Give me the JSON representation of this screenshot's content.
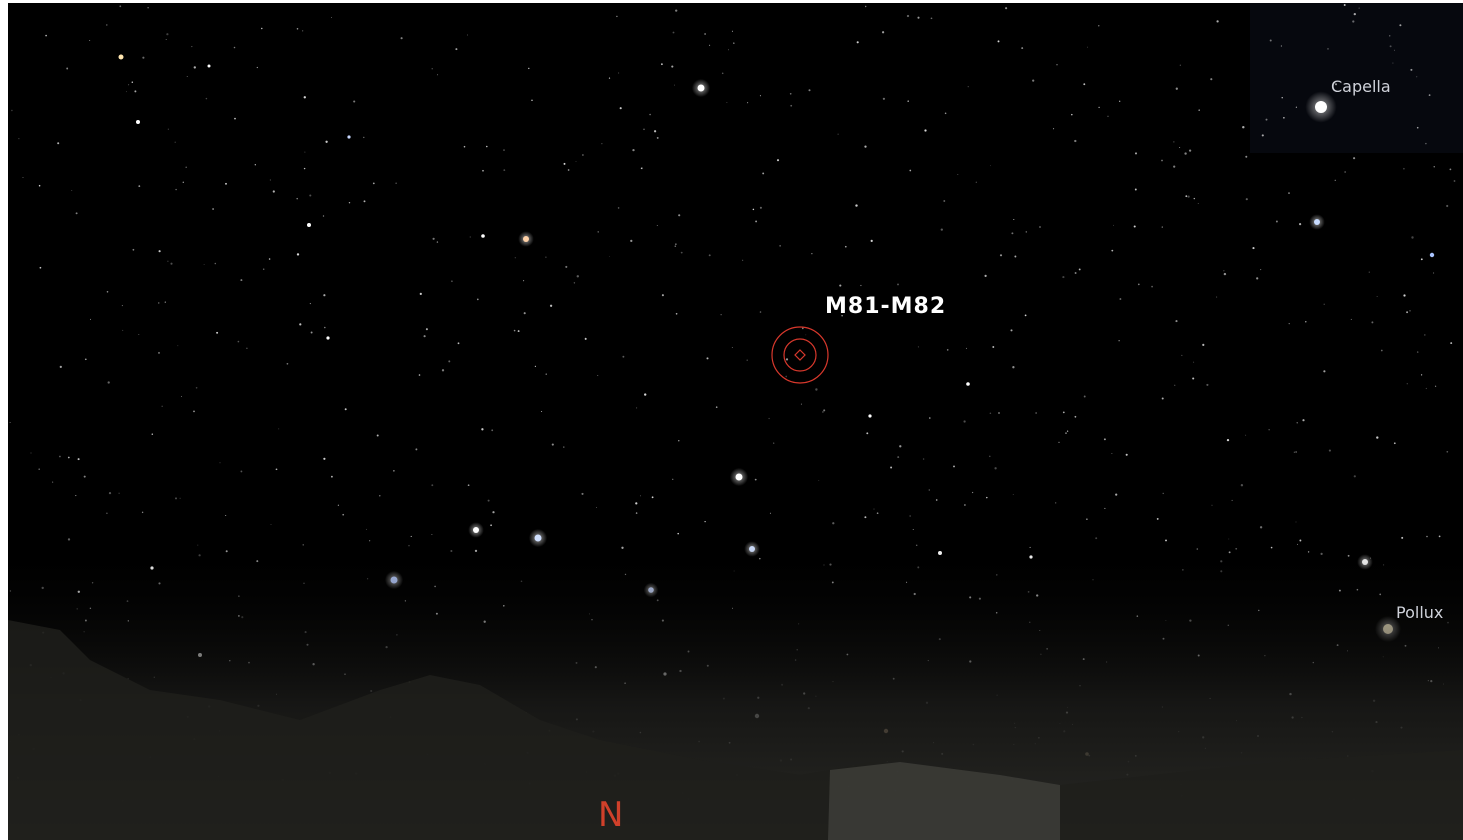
{
  "selected_object": {
    "label": "M81-M82"
  },
  "star_labels": [
    "Capella",
    "Pollux"
  ],
  "cardinal_point": "N"
}
